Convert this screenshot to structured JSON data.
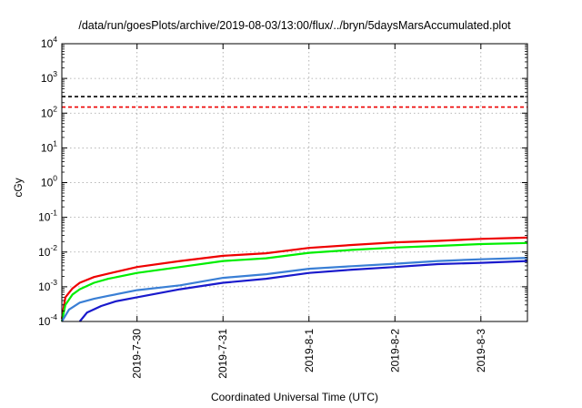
{
  "chart_data": {
    "type": "line",
    "title": "/data/run/goesPlots/archive/2019-08-03/13:00/flux/../bryn/5daysMarsAccumulated.plot",
    "xlabel": "Coordinated Universal Time (UTC)",
    "ylabel": "cGy",
    "x_scale": "time",
    "y_scale": "log",
    "xlim": [
      "2019-07-29T03:00",
      "2019-08-03T13:00"
    ],
    "ylim": [
      0.0001,
      10000
    ],
    "grid": true,
    "legend": "none",
    "x_ticks": [
      {
        "x": "2019-07-30T00:00",
        "label": "2019-7-30"
      },
      {
        "x": "2019-07-31T00:00",
        "label": "2019-7-31"
      },
      {
        "x": "2019-08-01T00:00",
        "label": "2019-8-1"
      },
      {
        "x": "2019-08-02T00:00",
        "label": "2019-8-2"
      },
      {
        "x": "2019-08-03T00:00",
        "label": "2019-8-3"
      }
    ],
    "y_ticks": [
      {
        "y": 0.0001,
        "base": "10",
        "exp": "-4"
      },
      {
        "y": 0.001,
        "base": "10",
        "exp": "-3"
      },
      {
        "y": 0.01,
        "base": "10",
        "exp": "-2"
      },
      {
        "y": 0.1,
        "base": "10",
        "exp": "-1"
      },
      {
        "y": 1,
        "base": "10",
        "exp": "0"
      },
      {
        "y": 10,
        "base": "10",
        "exp": "1"
      },
      {
        "y": 100,
        "base": "10",
        "exp": "2"
      },
      {
        "y": 1000,
        "base": "10",
        "exp": "3"
      },
      {
        "y": 10000,
        "base": "10",
        "exp": "4"
      }
    ],
    "reference_lines": [
      {
        "y": 300,
        "color": "#000000",
        "style": "dashed"
      },
      {
        "y": 150,
        "color": "#ee0000",
        "style": "dashed"
      }
    ],
    "series": [
      {
        "color": "#ee0000",
        "points": [
          [
            "2019-07-29T03:00",
            0.00012
          ],
          [
            "2019-07-29T04:00",
            0.0005
          ],
          [
            "2019-07-29T06:00",
            0.0009
          ],
          [
            "2019-07-29T08:00",
            0.0013
          ],
          [
            "2019-07-29T12:00",
            0.0019
          ],
          [
            "2019-07-29T16:00",
            0.0024
          ],
          [
            "2019-07-30T00:00",
            0.0037
          ],
          [
            "2019-07-30T12:00",
            0.0055
          ],
          [
            "2019-07-31T00:00",
            0.0078
          ],
          [
            "2019-07-31T12:00",
            0.0092
          ],
          [
            "2019-08-01T00:00",
            0.0132
          ],
          [
            "2019-08-01T12:00",
            0.016
          ],
          [
            "2019-08-02T00:00",
            0.019
          ],
          [
            "2019-08-02T12:00",
            0.021
          ],
          [
            "2019-08-03T00:00",
            0.024
          ],
          [
            "2019-08-03T13:00",
            0.026
          ]
        ]
      },
      {
        "color": "#00ee00",
        "points": [
          [
            "2019-07-29T03:00",
            0.0001
          ],
          [
            "2019-07-29T04:00",
            0.0003
          ],
          [
            "2019-07-29T06:00",
            0.0006
          ],
          [
            "2019-07-29T08:00",
            0.00085
          ],
          [
            "2019-07-29T12:00",
            0.0013
          ],
          [
            "2019-07-29T16:00",
            0.0017
          ],
          [
            "2019-07-30T00:00",
            0.0025
          ],
          [
            "2019-07-30T12:00",
            0.0037
          ],
          [
            "2019-07-31T00:00",
            0.0055
          ],
          [
            "2019-07-31T12:00",
            0.0066
          ],
          [
            "2019-08-01T00:00",
            0.0095
          ],
          [
            "2019-08-01T12:00",
            0.0115
          ],
          [
            "2019-08-02T00:00",
            0.0135
          ],
          [
            "2019-08-02T12:00",
            0.015
          ],
          [
            "2019-08-03T00:00",
            0.017
          ],
          [
            "2019-08-03T13:00",
            0.0182
          ]
        ]
      },
      {
        "color": "#3a7fd5",
        "points": [
          [
            "2019-07-29T03:00",
            0.0001
          ],
          [
            "2019-07-29T05:00",
            0.00022
          ],
          [
            "2019-07-29T08:00",
            0.00035
          ],
          [
            "2019-07-29T12:00",
            0.00045
          ],
          [
            "2019-07-29T16:00",
            0.00055
          ],
          [
            "2019-07-30T00:00",
            0.0008
          ],
          [
            "2019-07-30T12:00",
            0.0011
          ],
          [
            "2019-07-31T00:00",
            0.0018
          ],
          [
            "2019-07-31T12:00",
            0.0023
          ],
          [
            "2019-08-01T00:00",
            0.0033
          ],
          [
            "2019-08-01T12:00",
            0.0039
          ],
          [
            "2019-08-02T00:00",
            0.0046
          ],
          [
            "2019-08-02T12:00",
            0.0055
          ],
          [
            "2019-08-03T00:00",
            0.0062
          ],
          [
            "2019-08-03T13:00",
            0.0068
          ]
        ]
      },
      {
        "color": "#1a1acc",
        "points": [
          [
            "2019-07-29T08:00",
            0.0001
          ],
          [
            "2019-07-29T10:00",
            0.00018
          ],
          [
            "2019-07-29T14:00",
            0.00028
          ],
          [
            "2019-07-29T18:00",
            0.00038
          ],
          [
            "2019-07-30T00:00",
            0.0005
          ],
          [
            "2019-07-30T12:00",
            0.00085
          ],
          [
            "2019-07-31T00:00",
            0.0013
          ],
          [
            "2019-07-31T12:00",
            0.0017
          ],
          [
            "2019-08-01T00:00",
            0.0025
          ],
          [
            "2019-08-01T12:00",
            0.0031
          ],
          [
            "2019-08-02T00:00",
            0.0037
          ],
          [
            "2019-08-02T12:00",
            0.0045
          ],
          [
            "2019-08-03T00:00",
            0.0049
          ],
          [
            "2019-08-03T13:00",
            0.0055
          ]
        ]
      }
    ]
  }
}
